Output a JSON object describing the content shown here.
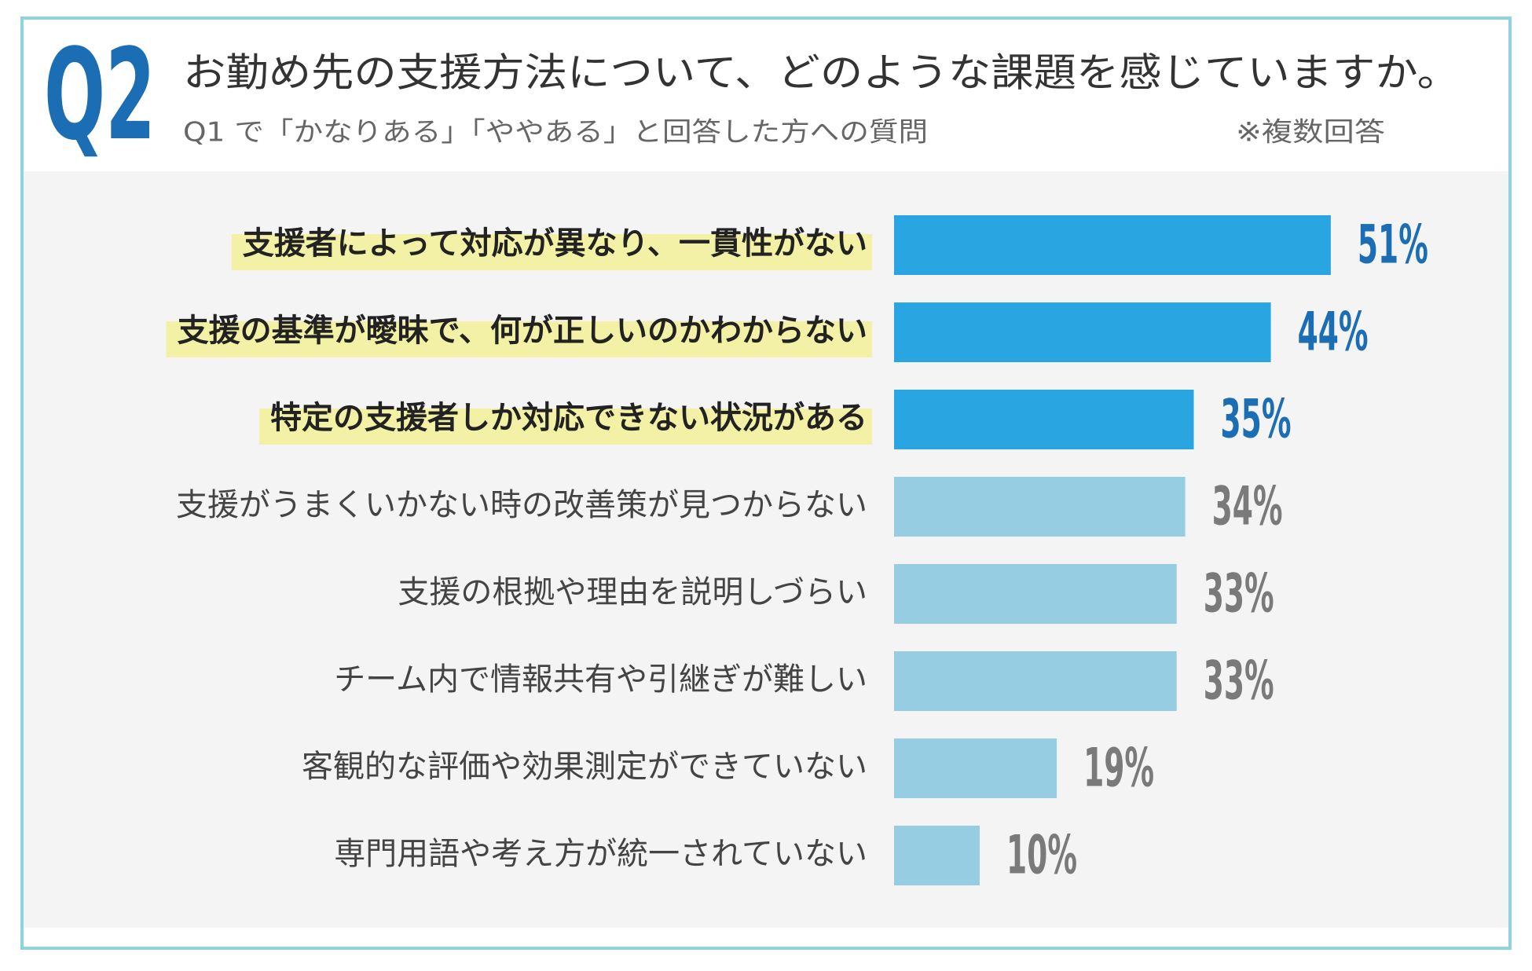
{
  "chart_data": {
    "type": "bar",
    "badge": "Q2",
    "title": "お勤め先の支援方法について、どのような課題を感じていますか。",
    "subtitle": "Q1 で「かなりある」「ややある」と回答した方への質問",
    "note": "※複数回答",
    "categories": [
      "支援者によって対応が異なり、一貫性がない",
      "支援の基準が曖昧で、何が正しいのかわからない",
      "特定の支援者しか対応できない状況がある",
      "支援がうまくいかない時の改善策が見つからない",
      "支援の根拠や理由を説明しづらい",
      "チーム内で情報共有や引継ぎが難しい",
      "客観的な評価や効果測定ができていない",
      "専門用語や考え方が統一されていない"
    ],
    "values": [
      51,
      44,
      35,
      34,
      33,
      33,
      19,
      10
    ],
    "value_labels": [
      "51%",
      "44%",
      "35%",
      "34%",
      "33%",
      "33%",
      "19%",
      "10%"
    ],
    "colors": [
      "#29a6e1",
      "#29a6e1",
      "#29a6e1",
      "#96cde2",
      "#96cde2",
      "#96cde2",
      "#96cde2",
      "#96cde2"
    ],
    "label_colors": [
      "#1b6db4",
      "#1b6db4",
      "#1b6db4",
      "#7a7a7a",
      "#7a7a7a",
      "#7a7a7a",
      "#7a7a7a",
      "#7a7a7a"
    ],
    "highlighted": [
      true,
      true,
      true,
      false,
      false,
      false,
      false,
      false
    ],
    "highlight_color": "#f3f1a6"
  }
}
